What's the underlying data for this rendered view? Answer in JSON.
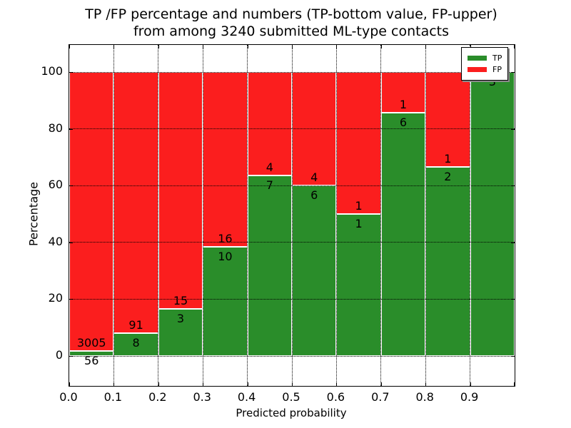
{
  "chart_data": {
    "type": "bar",
    "subtype": "stacked-percentage-histogram",
    "title": "TP /FP percentage and numbers (TP-bottom value, FP-upper) from among 3240 submitted ML-type contacts",
    "title_line1": "TP /FP percentage and numbers (TP-bottom value, FP-upper)",
    "title_line2": "from among 3240 submitted ML-type contacts",
    "xlabel": "Predicted probability",
    "ylabel": "Percentage",
    "total_submitted": 3240,
    "x_tick_labels": [
      "0.0",
      "0.1",
      "0.2",
      "0.3",
      "0.4",
      "0.5",
      "0.6",
      "0.7",
      "0.8",
      "0.9"
    ],
    "y_tick_values": [
      0,
      20,
      40,
      60,
      80,
      100
    ],
    "xlim": [
      0.0,
      1.0
    ],
    "ylim_percent": [
      -11,
      110
    ],
    "grid": "dotted",
    "legend": {
      "position": "upper right",
      "entries": [
        {
          "label": "TP",
          "color": "#2a8d2a"
        },
        {
          "label": "FP",
          "color": "#fb1e1e"
        }
      ]
    },
    "bins": [
      {
        "range": [
          0.0,
          0.1
        ],
        "tp": 56,
        "fp": 3005,
        "tp_percent": 1.83
      },
      {
        "range": [
          0.1,
          0.2
        ],
        "tp": 8,
        "fp": 91,
        "tp_percent": 8.08
      },
      {
        "range": [
          0.2,
          0.3
        ],
        "tp": 3,
        "fp": 15,
        "tp_percent": 16.67
      },
      {
        "range": [
          0.3,
          0.4
        ],
        "tp": 10,
        "fp": 16,
        "tp_percent": 38.46
      },
      {
        "range": [
          0.4,
          0.5
        ],
        "tp": 7,
        "fp": 4,
        "tp_percent": 63.64
      },
      {
        "range": [
          0.5,
          0.6
        ],
        "tp": 6,
        "fp": 4,
        "tp_percent": 60.0
      },
      {
        "range": [
          0.6,
          0.7
        ],
        "tp": 1,
        "fp": 1,
        "tp_percent": 50.0
      },
      {
        "range": [
          0.7,
          0.8
        ],
        "tp": 6,
        "fp": 1,
        "tp_percent": 85.71
      },
      {
        "range": [
          0.8,
          0.9
        ],
        "tp": 2,
        "fp": 1,
        "tp_percent": 66.67
      },
      {
        "range": [
          0.9,
          1.0
        ],
        "tp": 3,
        "fp": 0,
        "tp_percent": 100.0
      }
    ]
  }
}
